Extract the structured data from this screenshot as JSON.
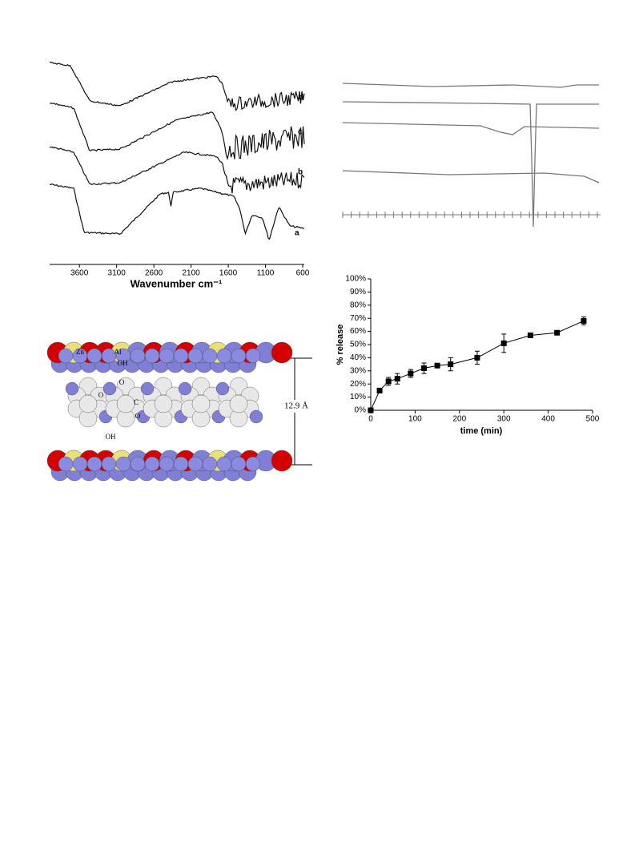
{
  "ftir_panel": {
    "curve_labels": [
      "a",
      "b",
      "c",
      "d"
    ],
    "xlim": [
      4000,
      600
    ],
    "xticks": [
      3600,
      3100,
      2600,
      2100,
      1600,
      1100,
      600
    ],
    "xlabel": "Wavenumber cm⁻¹"
  },
  "model_panel": {
    "atom_labels": [
      "Zn",
      "Al",
      "OH",
      "O",
      "O",
      "C",
      "O",
      "OH"
    ],
    "spacing_label": "12.9 Å"
  },
  "chart_data": {
    "type": "line",
    "x": [
      0,
      20,
      40,
      60,
      90,
      120,
      150,
      180,
      240,
      300,
      360,
      420,
      480
    ],
    "values": [
      0,
      15,
      22,
      24,
      28,
      32,
      34,
      35,
      40,
      51,
      57,
      59,
      68
    ],
    "errors": [
      0,
      1,
      3,
      4,
      3,
      4,
      1,
      5,
      5,
      7,
      1,
      1,
      3
    ],
    "color": "#000000",
    "xlim": [
      0,
      500
    ],
    "xticks": [
      0,
      100,
      200,
      300,
      400,
      500
    ],
    "ylim": [
      0,
      100
    ],
    "yticks": [
      {
        "value": 0,
        "label": "0%"
      },
      {
        "value": 10,
        "label": "10%"
      },
      {
        "value": 20,
        "label": "20%"
      },
      {
        "value": 30,
        "label": "30%"
      },
      {
        "value": 40,
        "label": "40%"
      },
      {
        "value": 50,
        "label": "50%"
      },
      {
        "value": 60,
        "label": "60%"
      },
      {
        "value": 70,
        "label": "70%"
      },
      {
        "value": 80,
        "label": "80%"
      },
      {
        "value": 90,
        "label": "90%"
      },
      {
        "value": 100,
        "label": "100%"
      }
    ],
    "xlabel": "time (min)",
    "ylabel": "% release"
  }
}
